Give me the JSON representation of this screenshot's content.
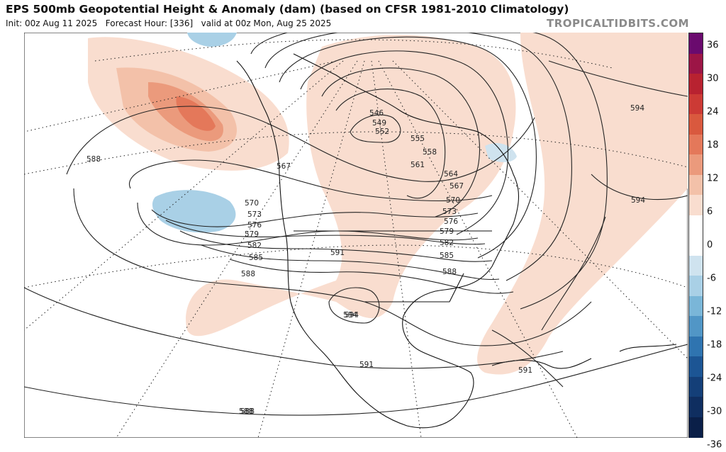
{
  "header": {
    "title": "EPS 500mb Geopotential Height & Anomaly (dam) (based on CFSR 1981-2010 Climatology)",
    "init": "Init: 00z Aug 11 2025",
    "forecast_hour": "Forecast Hour: [336]",
    "valid": "valid at 00z Mon, Aug 25 2025",
    "brand": "TROPICALTIDBITS.COM"
  },
  "colorbar": {
    "labels": [
      "36",
      "30",
      "24",
      "18",
      "12",
      "6",
      "0",
      "-6",
      "-12",
      "-18",
      "-24",
      "-30",
      "-36"
    ],
    "colors": [
      "#6a0a6e",
      "#9c1546",
      "#b82230",
      "#cc3a35",
      "#d9593e",
      "#e4785a",
      "#eb9a7c",
      "#f3c1a9",
      "#f9ddcf",
      "#ffffff",
      "#ffffff",
      "#cfe3ef",
      "#a9d0e6",
      "#7ab6d8",
      "#5196c6",
      "#2f74b0",
      "#1c5594",
      "#143f78",
      "#0f2e60",
      "#0a1f48"
    ]
  },
  "map": {
    "contour_labels": [
      "546",
      "549",
      "552",
      "555",
      "558",
      "561",
      "564",
      "567",
      "570",
      "573",
      "576",
      "579",
      "582",
      "585",
      "588",
      "591",
      "594"
    ],
    "labels": [
      {
        "text": "546"
      },
      {
        "text": "549"
      },
      {
        "text": "552"
      },
      {
        "text": "555"
      },
      {
        "text": "558"
      },
      {
        "text": "561"
      },
      {
        "text": "564"
      },
      {
        "text": "567"
      },
      {
        "text": "570"
      },
      {
        "text": "573"
      },
      {
        "text": "576"
      },
      {
        "text": "579"
      },
      {
        "text": "582"
      },
      {
        "text": "585"
      },
      {
        "text": "588"
      },
      {
        "text": "591"
      },
      {
        "text": "594"
      },
      {
        "text": "588"
      },
      {
        "text": "567"
      },
      {
        "text": "570"
      },
      {
        "text": "573"
      },
      {
        "text": "576"
      },
      {
        "text": "579"
      },
      {
        "text": "582"
      },
      {
        "text": "585"
      },
      {
        "text": "588"
      },
      {
        "text": "591"
      },
      {
        "text": "594"
      },
      {
        "text": "588"
      },
      {
        "text": "594"
      },
      {
        "text": "594"
      },
      {
        "text": "591"
      },
      {
        "text": "588"
      }
    ]
  }
}
